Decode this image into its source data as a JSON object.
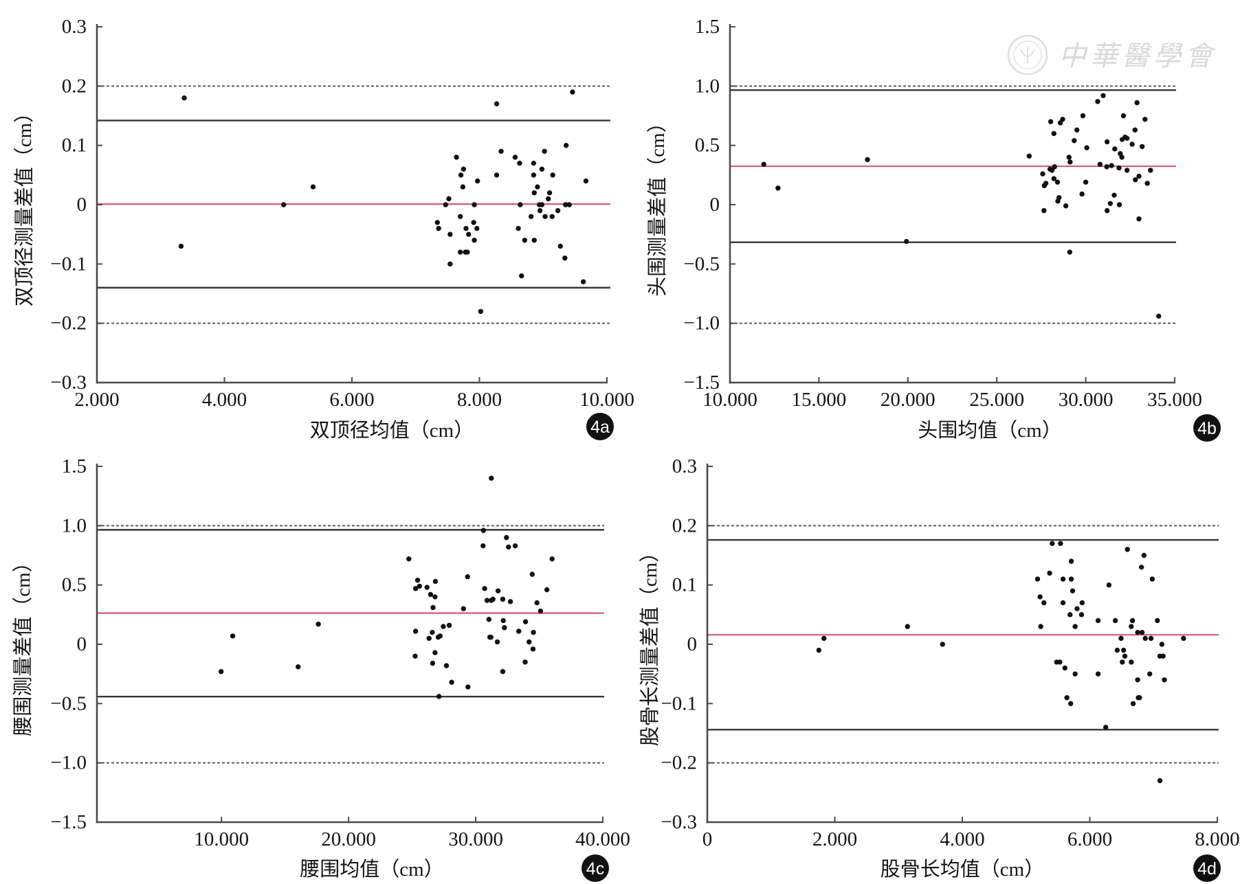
{
  "figure": {
    "type": "bland-altman-scatter-grid",
    "panel_count": 4
  },
  "watermark": {
    "text": "中華醫學會",
    "icon": "society-seal-icon"
  },
  "colors": {
    "mean_line": "#d4577f",
    "loa_line": "#363636",
    "limit_line": "#5a5a5a",
    "axis": "#4a4a4a",
    "points": "#111111",
    "badge": "#111111",
    "watermark": "#d9d9d9"
  },
  "chart_data": [
    {
      "type": "scatter",
      "panel": "4a",
      "title": "",
      "xlabel": "双顶径均值（cm）",
      "ylabel": "双顶径测量差值（cm）",
      "xlim": [
        2,
        10
      ],
      "ylim": [
        -0.3,
        0.3
      ],
      "grid": false,
      "legend": "none",
      "xticks": [
        {
          "value": 2,
          "label": "2.000"
        },
        {
          "value": 4,
          "label": "4.000"
        },
        {
          "value": 6,
          "label": "6.000"
        },
        {
          "value": 8,
          "label": "8.000"
        },
        {
          "value": 10,
          "label": "10.000"
        }
      ],
      "yticks": [
        {
          "value": 0.3,
          "label": "0.3"
        },
        {
          "value": 0.2,
          "label": "0.2"
        },
        {
          "value": 0.1,
          "label": "0.1"
        },
        {
          "value": 0,
          "label": "0"
        },
        {
          "value": -0.1,
          "label": "−0.1"
        },
        {
          "value": -0.2,
          "label": "−0.2"
        },
        {
          "value": -0.3,
          "label": "−0.3"
        }
      ],
      "reference_lines": {
        "mean": 0.001,
        "upper_loa": 0.142,
        "lower_loa": -0.14,
        "upper_limit": 0.2,
        "lower_limit": -0.2
      },
      "points": [
        [
          3.37,
          0.18
        ],
        [
          3.32,
          -0.07
        ],
        [
          4.93,
          0.0
        ],
        [
          5.39,
          0.03
        ],
        [
          8.27,
          0.17
        ],
        [
          9.46,
          0.19
        ],
        [
          7.64,
          0.08
        ],
        [
          8.34,
          0.09
        ],
        [
          8.56,
          0.08
        ],
        [
          8.63,
          0.07
        ],
        [
          8.85,
          0.07
        ],
        [
          9.02,
          0.09
        ],
        [
          9.36,
          0.1
        ],
        [
          7.71,
          0.05
        ],
        [
          7.75,
          0.06
        ],
        [
          7.97,
          0.04
        ],
        [
          8.27,
          0.05
        ],
        [
          7.74,
          0.03
        ],
        [
          8.85,
          0.05
        ],
        [
          8.98,
          0.06
        ],
        [
          9.15,
          0.05
        ],
        [
          8.91,
          0.03
        ],
        [
          8.86,
          0.02
        ],
        [
          9.1,
          0.02
        ],
        [
          9.08,
          0.01
        ],
        [
          9.67,
          0.04
        ],
        [
          7.52,
          0.01
        ],
        [
          7.47,
          0.0
        ],
        [
          7.92,
          0.0
        ],
        [
          8.64,
          0.0
        ],
        [
          8.94,
          0.0
        ],
        [
          8.98,
          0.0
        ],
        [
          9.35,
          0.0
        ],
        [
          9.41,
          0.0
        ],
        [
          7.7,
          -0.02
        ],
        [
          7.34,
          -0.03
        ],
        [
          7.36,
          -0.04
        ],
        [
          7.54,
          -0.05
        ],
        [
          7.79,
          -0.04
        ],
        [
          7.83,
          -0.05
        ],
        [
          7.91,
          -0.03
        ],
        [
          7.96,
          -0.04
        ],
        [
          7.92,
          -0.06
        ],
        [
          7.7,
          -0.08
        ],
        [
          7.78,
          -0.08
        ],
        [
          7.81,
          -0.08
        ],
        [
          7.54,
          -0.1
        ],
        [
          8.61,
          -0.04
        ],
        [
          8.71,
          -0.06
        ],
        [
          8.86,
          -0.06
        ],
        [
          8.81,
          -0.02
        ],
        [
          8.95,
          -0.01
        ],
        [
          9.03,
          -0.02
        ],
        [
          9.14,
          -0.02
        ],
        [
          9.23,
          -0.01
        ],
        [
          9.27,
          -0.07
        ],
        [
          9.34,
          -0.09
        ],
        [
          8.66,
          -0.12
        ],
        [
          9.63,
          -0.13
        ],
        [
          8.02,
          -0.18
        ]
      ]
    },
    {
      "type": "scatter",
      "panel": "4b",
      "title": "",
      "xlabel": "头围均值（cm）",
      "ylabel": "头围测量差值（cm）",
      "xlim": [
        10,
        35
      ],
      "ylim": [
        -1.5,
        1.5
      ],
      "grid": false,
      "legend": "none",
      "xticks": [
        {
          "value": 10,
          "label": "10.000"
        },
        {
          "value": 15,
          "label": "15.000"
        },
        {
          "value": 20,
          "label": "20.000"
        },
        {
          "value": 25,
          "label": "25.000"
        },
        {
          "value": 30,
          "label": "30.000"
        },
        {
          "value": 35,
          "label": "35.000"
        }
      ],
      "yticks": [
        {
          "value": 1.5,
          "label": "1.5"
        },
        {
          "value": 1.0,
          "label": "1.0"
        },
        {
          "value": 0.5,
          "label": "0.5"
        },
        {
          "value": 0,
          "label": "0"
        },
        {
          "value": -0.5,
          "label": "−0.5"
        },
        {
          "value": -1.0,
          "label": "−1.0"
        },
        {
          "value": -1.5,
          "label": "−1.5"
        }
      ],
      "reference_lines": {
        "mean": 0.324,
        "upper_loa": 0.966,
        "lower_loa": -0.317,
        "upper_limit": 1.0,
        "lower_limit": -1.0
      },
      "points": [
        [
          11.9,
          0.34
        ],
        [
          12.7,
          0.14
        ],
        [
          17.73,
          0.38
        ],
        [
          19.92,
          -0.31
        ],
        [
          26.82,
          0.41
        ],
        [
          27.58,
          0.26
        ],
        [
          27.67,
          0.16
        ],
        [
          27.76,
          0.18
        ],
        [
          27.65,
          -0.05
        ],
        [
          28.03,
          0.7
        ],
        [
          27.99,
          0.3
        ],
        [
          28.1,
          0.29
        ],
        [
          28.21,
          0.6
        ],
        [
          28.25,
          0.32
        ],
        [
          28.21,
          0.22
        ],
        [
          28.41,
          0.19
        ],
        [
          28.57,
          0.69
        ],
        [
          28.7,
          0.72
        ],
        [
          28.5,
          0.06
        ],
        [
          28.43,
          0.03
        ],
        [
          28.88,
          -0.01
        ],
        [
          29.06,
          0.4
        ],
        [
          29.12,
          0.36
        ],
        [
          29.1,
          -0.4
        ],
        [
          29.35,
          0.54
        ],
        [
          29.5,
          0.63
        ],
        [
          29.84,
          0.75
        ],
        [
          29.79,
          0.09
        ],
        [
          30.06,
          0.48
        ],
        [
          30.0,
          0.19
        ],
        [
          30.67,
          0.87
        ],
        [
          30.98,
          0.92
        ],
        [
          30.8,
          0.34
        ],
        [
          31.18,
          0.32
        ],
        [
          31.2,
          0.53
        ],
        [
          31.2,
          -0.05
        ],
        [
          31.38,
          0.01
        ],
        [
          31.45,
          0.33
        ],
        [
          31.6,
          0.08
        ],
        [
          31.63,
          0.47
        ],
        [
          31.87,
          0.31
        ],
        [
          31.89,
          0.0
        ],
        [
          31.94,
          0.43
        ],
        [
          32.03,
          0.4
        ],
        [
          32.05,
          0.55
        ],
        [
          32.12,
          0.75
        ],
        [
          32.21,
          0.57
        ],
        [
          32.32,
          0.56
        ],
        [
          32.32,
          0.29
        ],
        [
          32.61,
          0.51
        ],
        [
          32.77,
          0.63
        ],
        [
          32.79,
          0.21
        ],
        [
          32.88,
          0.86
        ],
        [
          32.99,
          0.24
        ],
        [
          32.99,
          -0.12
        ],
        [
          33.17,
          0.49
        ],
        [
          33.33,
          0.72
        ],
        [
          33.46,
          0.18
        ],
        [
          33.64,
          0.29
        ],
        [
          34.1,
          -0.94
        ]
      ]
    },
    {
      "type": "scatter",
      "panel": "4c",
      "title": "",
      "xlabel": "腰围均值（cm）",
      "ylabel": "腰围测量差值（cm）",
      "xlim": [
        0.2,
        40
      ],
      "ylim": [
        -1.5,
        1.5
      ],
      "grid": false,
      "legend": "none",
      "xticks": [
        {
          "value": 10,
          "label": "10.000"
        },
        {
          "value": 20,
          "label": "20.000"
        },
        {
          "value": 30,
          "label": "30.000"
        },
        {
          "value": 40,
          "label": "40.000"
        }
      ],
      "yticks": [
        {
          "value": 1.5,
          "label": "1.5"
        },
        {
          "value": 1.0,
          "label": "1.0"
        },
        {
          "value": 0.5,
          "label": "0.5"
        },
        {
          "value": 0,
          "label": "0"
        },
        {
          "value": -0.5,
          "label": "−0.5"
        },
        {
          "value": -1.0,
          "label": "−1.0"
        },
        {
          "value": -1.5,
          "label": "−1.5"
        }
      ],
      "reference_lines": {
        "mean": 0.263,
        "upper_loa": 0.965,
        "lower_loa": -0.441,
        "upper_limit": 1.0,
        "lower_limit": -1.0
      },
      "points": [
        [
          9.97,
          -0.23
        ],
        [
          10.88,
          0.07
        ],
        [
          16.03,
          -0.19
        ],
        [
          17.62,
          0.17
        ],
        [
          24.74,
          0.72
        ],
        [
          25.27,
          0.11
        ],
        [
          25.24,
          -0.1
        ],
        [
          25.43,
          0.54
        ],
        [
          25.27,
          0.47
        ],
        [
          25.58,
          0.49
        ],
        [
          26.17,
          0.48
        ],
        [
          26.45,
          0.42
        ],
        [
          26.8,
          0.4
        ],
        [
          26.83,
          0.53
        ],
        [
          26.64,
          0.31
        ],
        [
          26.33,
          0.05
        ],
        [
          26.58,
          0.1
        ],
        [
          26.61,
          -0.16
        ],
        [
          26.8,
          -0.07
        ],
        [
          27.05,
          0.06
        ],
        [
          27.2,
          0.07
        ],
        [
          27.45,
          0.15
        ],
        [
          27.92,
          0.16
        ],
        [
          27.7,
          -0.18
        ],
        [
          28.11,
          -0.32
        ],
        [
          27.11,
          -0.44
        ],
        [
          29.04,
          0.3
        ],
        [
          29.36,
          0.57
        ],
        [
          29.39,
          -0.36
        ],
        [
          30.58,
          0.83
        ],
        [
          30.61,
          0.96
        ],
        [
          30.7,
          0.47
        ],
        [
          30.89,
          0.37
        ],
        [
          31.23,
          0.37
        ],
        [
          31.36,
          0.38
        ],
        [
          31.23,
          1.4
        ],
        [
          31.04,
          0.21
        ],
        [
          31.11,
          0.06
        ],
        [
          31.2,
          0.06
        ],
        [
          31.7,
          0.02
        ],
        [
          31.76,
          0.45
        ],
        [
          32.13,
          0.38
        ],
        [
          32.17,
          0.2
        ],
        [
          32.26,
          0.14
        ],
        [
          32.13,
          -0.23
        ],
        [
          32.42,
          0.9
        ],
        [
          32.58,
          0.82
        ],
        [
          32.73,
          0.36
        ],
        [
          33.11,
          0.83
        ],
        [
          33.39,
          0.11
        ],
        [
          33.92,
          0.19
        ],
        [
          33.89,
          -0.15
        ],
        [
          34.2,
          0.02
        ],
        [
          34.45,
          0.59
        ],
        [
          34.54,
          0.1
        ],
        [
          34.51,
          -0.04
        ],
        [
          34.82,
          0.35
        ],
        [
          35.1,
          0.28
        ],
        [
          35.6,
          0.46
        ],
        [
          36.01,
          0.72
        ]
      ]
    },
    {
      "type": "scatter",
      "panel": "4d",
      "title": "",
      "xlabel": "股骨长均值（cm）",
      "ylabel": "股骨长测量差值（cm）",
      "xlim": [
        0,
        8
      ],
      "ylim": [
        -0.3,
        0.3
      ],
      "grid": false,
      "legend": "none",
      "xticks": [
        {
          "value": 0,
          "label": "0"
        },
        {
          "value": 2,
          "label": "2.000"
        },
        {
          "value": 4,
          "label": "4.000"
        },
        {
          "value": 6,
          "label": "6.000"
        },
        {
          "value": 8,
          "label": "8.000"
        }
      ],
      "yticks": [
        {
          "value": 0.3,
          "label": "0.3"
        },
        {
          "value": 0.2,
          "label": "0.2"
        },
        {
          "value": 0.1,
          "label": "0.1"
        },
        {
          "value": 0,
          "label": "0"
        },
        {
          "value": -0.1,
          "label": "−0.1"
        },
        {
          "value": -0.2,
          "label": "−0.2"
        },
        {
          "value": -0.3,
          "label": "−0.3"
        }
      ],
      "reference_lines": {
        "mean": 0.016,
        "upper_loa": 0.176,
        "lower_loa": -0.144,
        "upper_limit": 0.2,
        "lower_limit": -0.2
      },
      "points": [
        [
          1.75,
          -0.01
        ],
        [
          1.83,
          0.01
        ],
        [
          3.14,
          0.03
        ],
        [
          3.69,
          0.0
        ],
        [
          7.1,
          -0.23
        ],
        [
          5.41,
          0.17
        ],
        [
          5.54,
          0.17
        ],
        [
          6.59,
          0.16
        ],
        [
          6.85,
          0.15
        ],
        [
          5.71,
          0.14
        ],
        [
          6.81,
          0.13
        ],
        [
          5.37,
          0.12
        ],
        [
          5.18,
          0.11
        ],
        [
          5.58,
          0.11
        ],
        [
          5.71,
          0.11
        ],
        [
          6.98,
          0.11
        ],
        [
          6.3,
          0.1
        ],
        [
          5.73,
          0.09
        ],
        [
          5.22,
          0.08
        ],
        [
          5.28,
          0.07
        ],
        [
          5.58,
          0.07
        ],
        [
          5.88,
          0.07
        ],
        [
          5.8,
          0.06
        ],
        [
          5.69,
          0.05
        ],
        [
          5.87,
          0.05
        ],
        [
          6.13,
          0.04
        ],
        [
          6.4,
          0.04
        ],
        [
          6.67,
          0.04
        ],
        [
          7.06,
          0.04
        ],
        [
          5.23,
          0.03
        ],
        [
          5.77,
          0.03
        ],
        [
          6.65,
          0.03
        ],
        [
          6.75,
          0.02
        ],
        [
          6.82,
          0.02
        ],
        [
          6.49,
          0.01
        ],
        [
          6.87,
          0.01
        ],
        [
          6.96,
          0.01
        ],
        [
          7.47,
          0.01
        ],
        [
          7.13,
          0.0
        ],
        [
          6.43,
          -0.01
        ],
        [
          6.53,
          -0.01
        ],
        [
          6.55,
          -0.02
        ],
        [
          7.1,
          -0.02
        ],
        [
          7.15,
          -0.02
        ],
        [
          5.48,
          -0.03
        ],
        [
          5.53,
          -0.03
        ],
        [
          6.51,
          -0.03
        ],
        [
          6.65,
          -0.03
        ],
        [
          5.61,
          -0.04
        ],
        [
          5.77,
          -0.05
        ],
        [
          6.13,
          -0.05
        ],
        [
          6.94,
          -0.05
        ],
        [
          6.75,
          -0.06
        ],
        [
          7.17,
          -0.06
        ],
        [
          5.64,
          -0.09
        ],
        [
          5.7,
          -0.1
        ],
        [
          6.76,
          -0.09
        ],
        [
          6.78,
          -0.09
        ],
        [
          6.68,
          -0.1
        ],
        [
          6.25,
          -0.14
        ]
      ]
    }
  ]
}
